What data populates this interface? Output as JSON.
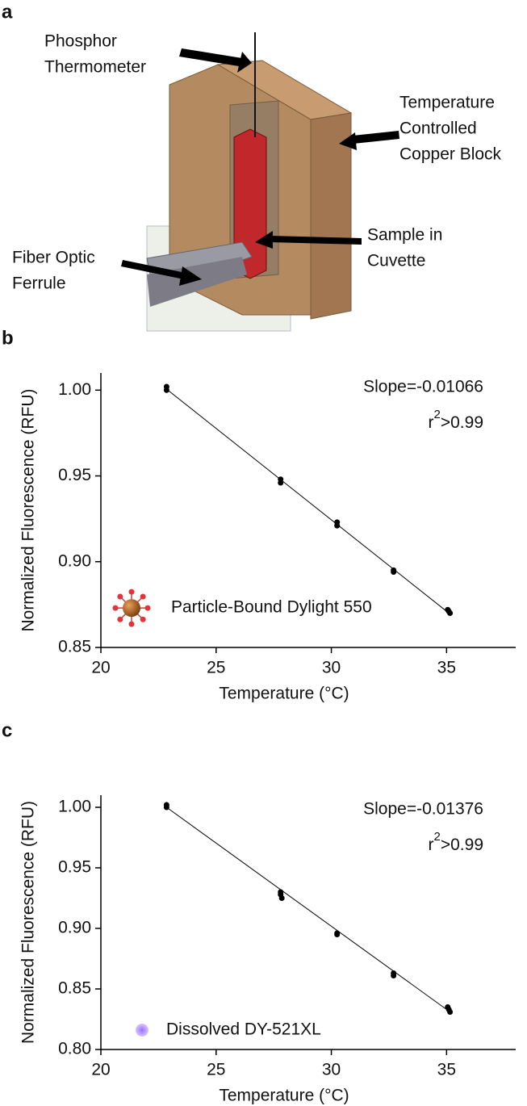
{
  "figure": {
    "panel_labels": [
      "a",
      "b",
      "c"
    ],
    "diagram": {
      "labels": [
        [
          "Phosphor",
          "Thermometer"
        ],
        [
          "Temperature",
          "Controlled",
          "Copper Block"
        ],
        [
          "Sample in",
          "Cuvette"
        ],
        [
          "Fiber Optic",
          "Ferrule"
        ]
      ]
    }
  },
  "chart_data": [
    {
      "type": "scatter",
      "xlabel": "Temperature (°C)",
      "ylabel": "Normalized Fluorescence (RFU)",
      "annotation": "Slope=-0.01066",
      "r2": {
        "base": "r",
        "sup": "2",
        "rest": ">0.99"
      },
      "legend_label": "Particle-Bound Dylight 550",
      "xlim": [
        20,
        38
      ],
      "xticks": [
        20,
        25,
        30,
        35
      ],
      "ylim": [
        0.85,
        1.01
      ],
      "yticks": [
        {
          "value": 0.85,
          "label": "0.85"
        },
        {
          "value": 0.9,
          "label": "0.90"
        },
        {
          "value": 0.95,
          "label": "0.95"
        },
        {
          "value": 1,
          "label": "1.00"
        }
      ],
      "series": [
        {
          "color": "#000000",
          "x": [
            22.85,
            22.85,
            27.8,
            27.8,
            30.25,
            30.25,
            32.7,
            32.7,
            35.05,
            35.1,
            35.15
          ],
          "values": [
            1.002,
            1.0,
            0.948,
            0.946,
            0.923,
            0.921,
            0.895,
            0.894,
            0.872,
            0.871,
            0.87
          ]
        }
      ],
      "fit": {
        "x": [
          22.85,
          35.15
        ],
        "values": [
          1.0006,
          0.8695
        ]
      }
    },
    {
      "type": "scatter",
      "xlabel": "Temperature (°C)",
      "ylabel": "Normalized Fluorescence (RFU)",
      "annotation": "Slope=-0.01376",
      "r2": {
        "base": "r",
        "sup": "2",
        "rest": ">0.99"
      },
      "legend_label": "Dissolved DY-521XL",
      "xlim": [
        20,
        38
      ],
      "xticks": [
        20,
        25,
        30,
        35
      ],
      "ylim": [
        0.8,
        1.01
      ],
      "yticks": [
        {
          "value": 0.8,
          "label": "0.80"
        },
        {
          "value": 0.85,
          "label": "0.85"
        },
        {
          "value": 0.9,
          "label": "0.90"
        },
        {
          "value": 0.95,
          "label": "0.95"
        },
        {
          "value": 1,
          "label": "1.00"
        }
      ],
      "series": [
        {
          "color": "#000000",
          "x": [
            22.85,
            22.85,
            27.8,
            27.8,
            27.85,
            30.25,
            30.25,
            32.7,
            32.7,
            35.05,
            35.1,
            35.15
          ],
          "values": [
            1.002,
            1.0,
            0.93,
            0.928,
            0.925,
            0.896,
            0.895,
            0.863,
            0.861,
            0.835,
            0.833,
            0.831
          ]
        }
      ],
      "fit": {
        "x": [
          22.85,
          35.15
        ],
        "values": [
          1.0,
          0.831
        ]
      }
    }
  ]
}
